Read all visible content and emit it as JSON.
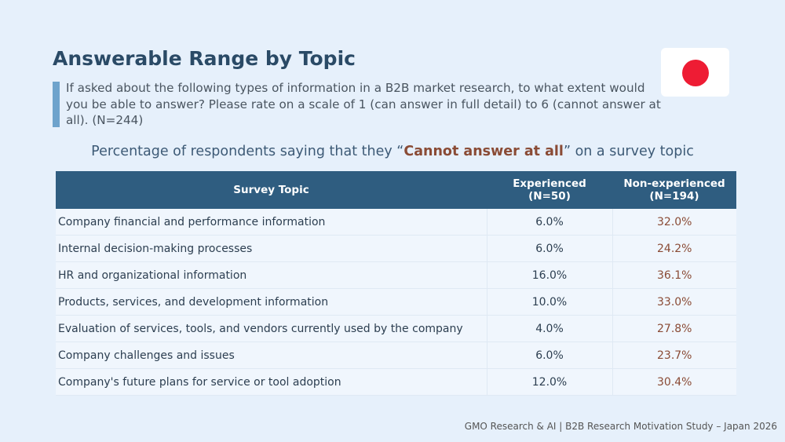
{
  "slide": {
    "title": "Answerable Range by Topic",
    "subtitle": "If asked about the following types of information in a B2B market research, to what extent would you be able to answer? Please rate on a scale of 1 (can answer in full detail) to 6 (cannot answer at all). (N=244)",
    "heading_pre": "Percentage of respondents saying that they “",
    "heading_emph": "Cannot answer at all",
    "heading_post": "” on a survey topic",
    "footer": "GMO Research & AI | B2B Research Motivation Study – Japan 2026",
    "flag_icon": "japan-flag-icon"
  },
  "colors": {
    "background": "#e6f0fb",
    "header": "#2f5d80",
    "accent_text": "#8a4b35",
    "flag_red": "#ee1c34"
  },
  "chart_data": {
    "type": "table",
    "columns": {
      "topic": "Survey Topic",
      "experienced_line1": "Experienced",
      "experienced_line2": "(N=50)",
      "nonexp_line1": "Non-experienced",
      "nonexp_line2": "(N=194)"
    },
    "rows": [
      {
        "topic": "Company financial and performance information",
        "experienced": "6.0%",
        "non_experienced": "32.0%"
      },
      {
        "topic": "Internal decision-making processes",
        "experienced": "6.0%",
        "non_experienced": "24.2%"
      },
      {
        "topic": "HR and organizational information",
        "experienced": "16.0%",
        "non_experienced": "36.1%"
      },
      {
        "topic": "Products, services, and development information",
        "experienced": "10.0%",
        "non_experienced": "33.0%"
      },
      {
        "topic": "Evaluation of services, tools, and vendors currently used by the company",
        "experienced": "4.0%",
        "non_experienced": "27.8%"
      },
      {
        "topic": "Company challenges and issues",
        "experienced": "6.0%",
        "non_experienced": "23.7%"
      },
      {
        "topic": "Company's future plans for service or tool adoption",
        "experienced": "12.0%",
        "non_experienced": "30.4%"
      }
    ]
  }
}
